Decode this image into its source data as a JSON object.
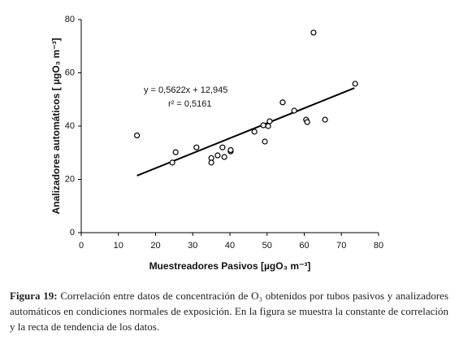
{
  "chart_data": {
    "type": "scatter",
    "x": [
      15,
      24.5,
      25.4,
      31,
      35,
      35,
      36.7,
      38,
      38.5,
      40.2,
      40.2,
      46.6,
      49,
      49.4,
      50.3,
      50.7,
      54.2,
      57.3,
      60.5,
      60.8,
      62.5,
      65.6,
      73.7
    ],
    "values": [
      36.5,
      26.3,
      30.2,
      32,
      28,
      26.3,
      29,
      32,
      28.4,
      30.5,
      31,
      37.9,
      40.3,
      34.2,
      40,
      41.8,
      48.9,
      45.8,
      42.4,
      41.5,
      75.1,
      42.4,
      55.9
    ],
    "trendline": {
      "x": [
        15,
        73.5
      ],
      "values": [
        21.4,
        54.3
      ]
    },
    "equation": "y = 0,5622x + 12,945",
    "r_squared": "r² = 0,5161",
    "x_label": "Muestreadores Pasivos [µgO₃ m⁻³]",
    "y_label": "Analizadores automáticos [ µgO₃ m⁻³]",
    "xlim": [
      0,
      80
    ],
    "xticks": [
      0,
      10,
      20,
      30,
      40,
      50,
      60,
      70,
      80
    ],
    "ylim": [
      0,
      80
    ],
    "yticks": [
      0,
      20,
      40,
      60,
      80
    ],
    "color": "#000000"
  },
  "caption": {
    "label": "Figura 19:",
    "text": "Correlación entre datos de concentración de O₃ obtenidos por tubos pasivos y analizadores automáticos en condiciones normales de exposición. En la figura se muestra la constante de correlación y la recta de tendencia de los datos."
  }
}
